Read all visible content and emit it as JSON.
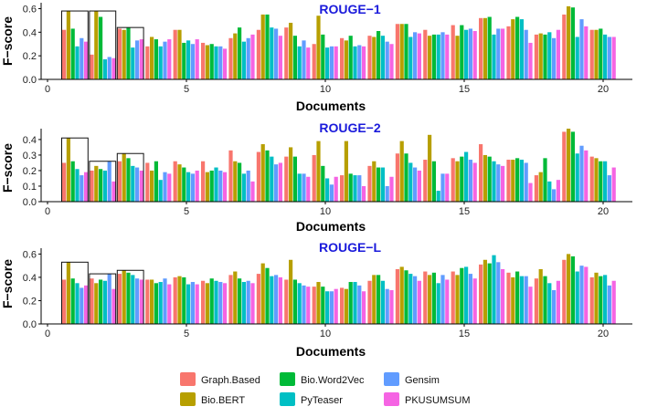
{
  "colors": {
    "Graph.Based": "#f8766d",
    "Bio.BERT": "#b79f00",
    "Bio.Word2Vec": "#00ba38",
    "PyTeaser": "#00bfc4",
    "Gensim": "#619cff",
    "PKUSUMSUM": "#f564e3"
  },
  "legend": {
    "items": [
      {
        "label": "Graph.Based",
        "key": "Graph.Based"
      },
      {
        "label": "Bio.Word2Vec",
        "key": "Bio.Word2Vec"
      },
      {
        "label": "Gensim",
        "key": "Gensim"
      },
      {
        "label": "Bio.BERT",
        "key": "Bio.BERT"
      },
      {
        "label": "PyTeaser",
        "key": "PyTeaser"
      },
      {
        "label": "PKUSUMSUM",
        "key": "PKUSUMSUM"
      }
    ]
  },
  "chart_data": [
    {
      "type": "bar",
      "title": "ROUGE−1",
      "xlabel": "Documents",
      "ylabel": "F−score",
      "xlim": [
        0,
        21
      ],
      "ylim": [
        0,
        0.65
      ],
      "x_ticks": [
        0,
        5,
        10,
        15,
        20
      ],
      "y_ticks": [
        0.0,
        0.2,
        0.4,
        0.6
      ],
      "y_tick_labels": [
        "0.0",
        "0.2",
        "0.4",
        "0.6"
      ],
      "grid": false,
      "legend_position": "bottom",
      "documents": [
        1,
        2,
        3,
        4,
        5,
        6,
        7,
        8,
        9,
        10,
        11,
        12,
        13,
        14,
        15,
        16,
        17,
        18,
        19,
        20
      ],
      "series": [
        {
          "name": "Graph.Based",
          "values": [
            0.42,
            0.21,
            0.43,
            0.28,
            0.42,
            0.31,
            0.35,
            0.42,
            0.44,
            0.3,
            0.35,
            0.37,
            0.47,
            0.42,
            0.46,
            0.52,
            0.45,
            0.38,
            0.55,
            0.42
          ]
        },
        {
          "name": "Bio.BERT",
          "values": [
            0.58,
            0.58,
            0.42,
            0.36,
            0.42,
            0.29,
            0.39,
            0.55,
            0.48,
            0.54,
            0.33,
            0.36,
            0.47,
            0.37,
            0.37,
            0.52,
            0.51,
            0.39,
            0.62,
            0.42
          ]
        },
        {
          "name": "Bio.Word2Vec",
          "values": [
            0.43,
            0.53,
            0.44,
            0.34,
            0.31,
            0.3,
            0.44,
            0.55,
            0.37,
            0.38,
            0.37,
            0.41,
            0.47,
            0.38,
            0.46,
            0.53,
            0.53,
            0.38,
            0.61,
            0.43
          ]
        },
        {
          "name": "PyTeaser",
          "values": [
            0.28,
            0.17,
            0.27,
            0.28,
            0.33,
            0.28,
            0.32,
            0.44,
            0.28,
            0.27,
            0.28,
            0.37,
            0.36,
            0.38,
            0.42,
            0.38,
            0.51,
            0.4,
            0.36,
            0.38
          ]
        },
        {
          "name": "Gensim",
          "values": [
            0.35,
            0.19,
            0.33,
            0.32,
            0.3,
            0.28,
            0.35,
            0.43,
            0.33,
            0.28,
            0.29,
            0.32,
            0.4,
            0.4,
            0.43,
            0.43,
            0.42,
            0.35,
            0.51,
            0.36
          ]
        },
        {
          "name": "PKUSUMSUM",
          "values": [
            0.32,
            0.18,
            0.34,
            0.34,
            0.34,
            0.26,
            0.38,
            0.37,
            0.27,
            0.28,
            0.28,
            0.3,
            0.39,
            0.38,
            0.41,
            0.43,
            0.31,
            0.42,
            0.45,
            0.36
          ]
        }
      ]
    },
    {
      "type": "bar",
      "title": "ROUGE−2",
      "xlabel": "Documents",
      "ylabel": "F−score",
      "xlim": [
        0,
        21
      ],
      "ylim": [
        0,
        0.47
      ],
      "x_ticks": [
        0,
        5,
        10,
        15,
        20
      ],
      "y_ticks": [
        0.0,
        0.1,
        0.2,
        0.3,
        0.4
      ],
      "y_tick_labels": [
        "0.0",
        "0.1",
        "0.2",
        "0.3",
        "0.4"
      ],
      "grid": false,
      "legend_position": "bottom",
      "documents": [
        1,
        2,
        3,
        4,
        5,
        6,
        7,
        8,
        9,
        10,
        11,
        12,
        13,
        14,
        15,
        16,
        17,
        18,
        19,
        20
      ],
      "series": [
        {
          "name": "Graph.Based",
          "values": [
            0.25,
            0.2,
            0.26,
            0.25,
            0.26,
            0.26,
            0.33,
            0.32,
            0.29,
            0.3,
            0.17,
            0.23,
            0.31,
            0.27,
            0.28,
            0.37,
            0.27,
            0.17,
            0.45,
            0.29
          ]
        },
        {
          "name": "Bio.BERT",
          "values": [
            0.41,
            0.23,
            0.31,
            0.2,
            0.24,
            0.19,
            0.26,
            0.37,
            0.35,
            0.39,
            0.39,
            0.26,
            0.39,
            0.43,
            0.26,
            0.3,
            0.27,
            0.19,
            0.47,
            0.28
          ]
        },
        {
          "name": "Bio.Word2Vec",
          "values": [
            0.26,
            0.21,
            0.28,
            0.26,
            0.22,
            0.2,
            0.25,
            0.33,
            0.29,
            0.23,
            0.18,
            0.22,
            0.31,
            0.26,
            0.29,
            0.29,
            0.28,
            0.28,
            0.45,
            0.26
          ]
        },
        {
          "name": "PyTeaser",
          "values": [
            0.21,
            0.2,
            0.23,
            0.14,
            0.19,
            0.22,
            0.18,
            0.29,
            0.18,
            0.15,
            0.17,
            0.22,
            0.25,
            0.07,
            0.32,
            0.26,
            0.27,
            0.13,
            0.31,
            0.26
          ]
        },
        {
          "name": "Gensim",
          "values": [
            0.17,
            0.26,
            0.22,
            0.19,
            0.18,
            0.2,
            0.2,
            0.24,
            0.18,
            0.11,
            0.17,
            0.1,
            0.22,
            0.18,
            0.27,
            0.24,
            0.25,
            0.08,
            0.36,
            0.17
          ]
        },
        {
          "name": "PKUSUMSUM",
          "values": [
            0.19,
            0.13,
            0.2,
            0.18,
            0.2,
            0.19,
            0.13,
            0.25,
            0.16,
            0.16,
            0.1,
            0.16,
            0.2,
            0.18,
            0.25,
            0.23,
            0.12,
            0.14,
            0.33,
            0.22
          ]
        }
      ]
    },
    {
      "type": "bar",
      "title": "ROUGE−L",
      "xlabel": "Documents",
      "ylabel": "F−score",
      "xlim": [
        0,
        21
      ],
      "ylim": [
        0,
        0.65
      ],
      "x_ticks": [
        0,
        5,
        10,
        15,
        20
      ],
      "y_ticks": [
        0.0,
        0.2,
        0.4,
        0.6
      ],
      "y_tick_labels": [
        "0.0",
        "0.2",
        "0.4",
        "0.6"
      ],
      "grid": false,
      "legend_position": "bottom",
      "documents": [
        1,
        2,
        3,
        4,
        5,
        6,
        7,
        8,
        9,
        10,
        11,
        12,
        13,
        14,
        15,
        16,
        17,
        18,
        19,
        20
      ],
      "series": [
        {
          "name": "Graph.Based",
          "values": [
            0.38,
            0.39,
            0.43,
            0.38,
            0.4,
            0.37,
            0.42,
            0.43,
            0.38,
            0.32,
            0.31,
            0.37,
            0.47,
            0.45,
            0.45,
            0.51,
            0.44,
            0.39,
            0.55,
            0.4
          ]
        },
        {
          "name": "Bio.BERT",
          "values": [
            0.53,
            0.35,
            0.46,
            0.38,
            0.41,
            0.35,
            0.45,
            0.52,
            0.55,
            0.36,
            0.3,
            0.42,
            0.49,
            0.42,
            0.42,
            0.55,
            0.4,
            0.47,
            0.6,
            0.44
          ]
        },
        {
          "name": "Bio.Word2Vec",
          "values": [
            0.39,
            0.38,
            0.44,
            0.35,
            0.4,
            0.39,
            0.39,
            0.48,
            0.38,
            0.32,
            0.36,
            0.42,
            0.46,
            0.44,
            0.48,
            0.52,
            0.45,
            0.41,
            0.58,
            0.41
          ]
        },
        {
          "name": "PyTeaser",
          "values": [
            0.35,
            0.37,
            0.42,
            0.36,
            0.34,
            0.37,
            0.36,
            0.41,
            0.35,
            0.28,
            0.36,
            0.37,
            0.43,
            0.35,
            0.49,
            0.59,
            0.41,
            0.35,
            0.45,
            0.42
          ]
        },
        {
          "name": "Gensim",
          "values": [
            0.31,
            0.43,
            0.39,
            0.39,
            0.36,
            0.36,
            0.37,
            0.42,
            0.33,
            0.28,
            0.33,
            0.3,
            0.41,
            0.42,
            0.43,
            0.53,
            0.41,
            0.29,
            0.5,
            0.33
          ]
        },
        {
          "name": "PKUSUMSUM",
          "values": [
            0.33,
            0.3,
            0.38,
            0.34,
            0.34,
            0.35,
            0.35,
            0.4,
            0.32,
            0.3,
            0.28,
            0.29,
            0.37,
            0.38,
            0.39,
            0.47,
            0.32,
            0.37,
            0.49,
            0.37
          ]
        }
      ]
    }
  ]
}
